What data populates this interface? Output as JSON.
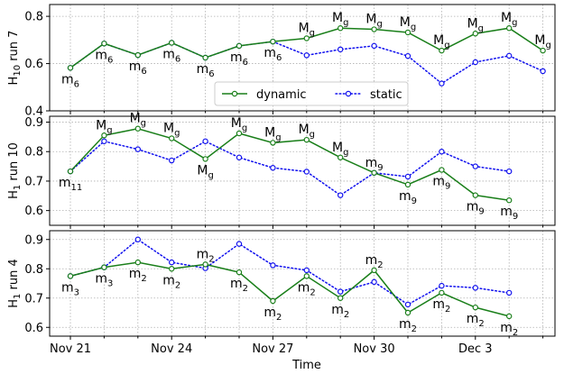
{
  "chart_data": {
    "type": "line",
    "xlabel": "Time",
    "x": [
      "Nov 21",
      "Nov 22",
      "Nov 23",
      "Nov 24",
      "Nov 25",
      "Nov 26",
      "Nov 27",
      "Nov 28",
      "Nov 29",
      "Nov 30",
      "Dec 1",
      "Dec 2",
      "Dec 3",
      "Dec 4",
      "Dec 5"
    ],
    "x_ticks": [
      "Nov 21",
      "Nov 24",
      "Nov 27",
      "Nov 30",
      "Dec 3"
    ],
    "grid": true,
    "legend": {
      "placement": "bottom-center of top panel",
      "entries": [
        "dynamic",
        "static"
      ]
    },
    "series_styles": {
      "dynamic": {
        "color": "#1a7f1a",
        "line": "solid",
        "marker": "circle"
      },
      "static": {
        "color": "#1010ee",
        "line": "dotted",
        "marker": "circle"
      }
    },
    "panels": [
      {
        "ylabel_main": "H",
        "ylabel_sub": "10",
        "ylabel_rest": " run 7",
        "ylim": [
          0.4,
          0.85
        ],
        "yticks": [
          "0.4",
          "0.6",
          "0.8"
        ],
        "series": [
          {
            "name": "dynamic",
            "values": [
              0.582,
              0.685,
              0.636,
              0.688,
              0.625,
              0.675,
              0.693,
              0.707,
              0.75,
              0.745,
              0.732,
              0.655,
              0.727,
              0.75,
              0.655
            ]
          },
          {
            "name": "static",
            "values": [
              0.582,
              0.685,
              0.636,
              0.688,
              0.625,
              0.675,
              0.693,
              0.635,
              0.66,
              0.675,
              0.632,
              0.516,
              0.606,
              0.633,
              0.568
            ]
          }
        ],
        "labels": [
          {
            "main": "m",
            "sub": "6",
            "pos": "below"
          },
          {
            "main": "m",
            "sub": "6",
            "pos": "below"
          },
          {
            "main": "m",
            "sub": "6",
            "pos": "below"
          },
          {
            "main": "m",
            "sub": "6",
            "pos": "below"
          },
          {
            "main": "m",
            "sub": "6",
            "pos": "below"
          },
          {
            "main": "m",
            "sub": "6",
            "pos": "below"
          },
          {
            "main": "m",
            "sub": "6",
            "pos": "below"
          },
          {
            "main": "M",
            "sub": "g",
            "pos": "above"
          },
          {
            "main": "M",
            "sub": "g",
            "pos": "above"
          },
          {
            "main": "M",
            "sub": "g",
            "pos": "above"
          },
          {
            "main": "M",
            "sub": "g",
            "pos": "above"
          },
          {
            "main": "M",
            "sub": "g",
            "pos": "above"
          },
          {
            "main": "M",
            "sub": "g",
            "pos": "above"
          },
          {
            "main": "M",
            "sub": "g",
            "pos": "above"
          },
          {
            "main": "M",
            "sub": "g",
            "pos": "above"
          }
        ]
      },
      {
        "ylabel_main": "H",
        "ylabel_sub": "1",
        "ylabel_rest": " run 10",
        "ylim": [
          0.55,
          0.92
        ],
        "yticks": [
          "0.6",
          "0.7",
          "0.8",
          "0.9"
        ],
        "series": [
          {
            "name": "dynamic",
            "values": [
              0.733,
              0.855,
              0.878,
              0.845,
              0.775,
              0.862,
              0.83,
              0.84,
              0.78,
              0.728,
              0.688,
              0.738,
              0.652,
              0.635
            ]
          },
          {
            "name": "static",
            "values": [
              0.733,
              0.835,
              0.808,
              0.77,
              0.835,
              0.78,
              0.745,
              0.732,
              0.652,
              0.728,
              0.715,
              0.8,
              0.75,
              0.733
            ]
          }
        ],
        "labels": [
          {
            "main": "m",
            "sub": "11",
            "pos": "below"
          },
          {
            "main": "M",
            "sub": "g",
            "pos": "above"
          },
          {
            "main": "M",
            "sub": "g",
            "pos": "above"
          },
          {
            "main": "M",
            "sub": "g",
            "pos": "above"
          },
          {
            "main": "M",
            "sub": "g",
            "pos": "below"
          },
          {
            "main": "M",
            "sub": "g",
            "pos": "above"
          },
          {
            "main": "M",
            "sub": "g",
            "pos": "above"
          },
          {
            "main": "M",
            "sub": "g",
            "pos": "above"
          },
          {
            "main": "M",
            "sub": "g",
            "pos": "above"
          },
          {
            "main": "m",
            "sub": "9",
            "pos": "above"
          },
          {
            "main": "m",
            "sub": "9",
            "pos": "below"
          },
          {
            "main": "m",
            "sub": "9",
            "pos": "below"
          },
          {
            "main": "m",
            "sub": "9",
            "pos": "below"
          },
          {
            "main": "m",
            "sub": "9",
            "pos": "below"
          }
        ]
      },
      {
        "ylabel_main": "H",
        "ylabel_sub": "1",
        "ylabel_rest": " run 4",
        "ylim": [
          0.57,
          0.93
        ],
        "yticks": [
          "0.6",
          "0.7",
          "0.8",
          "0.9"
        ],
        "series": [
          {
            "name": "dynamic",
            "values": [
              0.775,
              0.805,
              0.822,
              0.8,
              0.815,
              0.788,
              0.69,
              0.775,
              0.7,
              0.795,
              0.65,
              0.718,
              0.668,
              0.638
            ]
          },
          {
            "name": "static",
            "values": [
              0.775,
              0.805,
              0.9,
              0.822,
              0.802,
              0.885,
              0.812,
              0.795,
              0.722,
              0.755,
              0.678,
              0.742,
              0.735,
              0.718
            ]
          }
        ],
        "labels": [
          {
            "main": "m",
            "sub": "3",
            "pos": "below"
          },
          {
            "main": "m",
            "sub": "3",
            "pos": "below"
          },
          {
            "main": "m",
            "sub": "2",
            "pos": "below"
          },
          {
            "main": "m",
            "sub": "2",
            "pos": "below"
          },
          {
            "main": "m",
            "sub": "2",
            "pos": "above"
          },
          {
            "main": "m",
            "sub": "2",
            "pos": "below"
          },
          {
            "main": "m",
            "sub": "2",
            "pos": "below"
          },
          {
            "main": "m",
            "sub": "2",
            "pos": "below"
          },
          {
            "main": "m",
            "sub": "2",
            "pos": "below"
          },
          {
            "main": "m",
            "sub": "2",
            "pos": "above"
          },
          {
            "main": "m",
            "sub": "2",
            "pos": "below"
          },
          {
            "main": "m",
            "sub": "2",
            "pos": "below"
          },
          {
            "main": "m",
            "sub": "2",
            "pos": "below"
          },
          {
            "main": "m",
            "sub": "2",
            "pos": "below"
          }
        ]
      }
    ]
  }
}
